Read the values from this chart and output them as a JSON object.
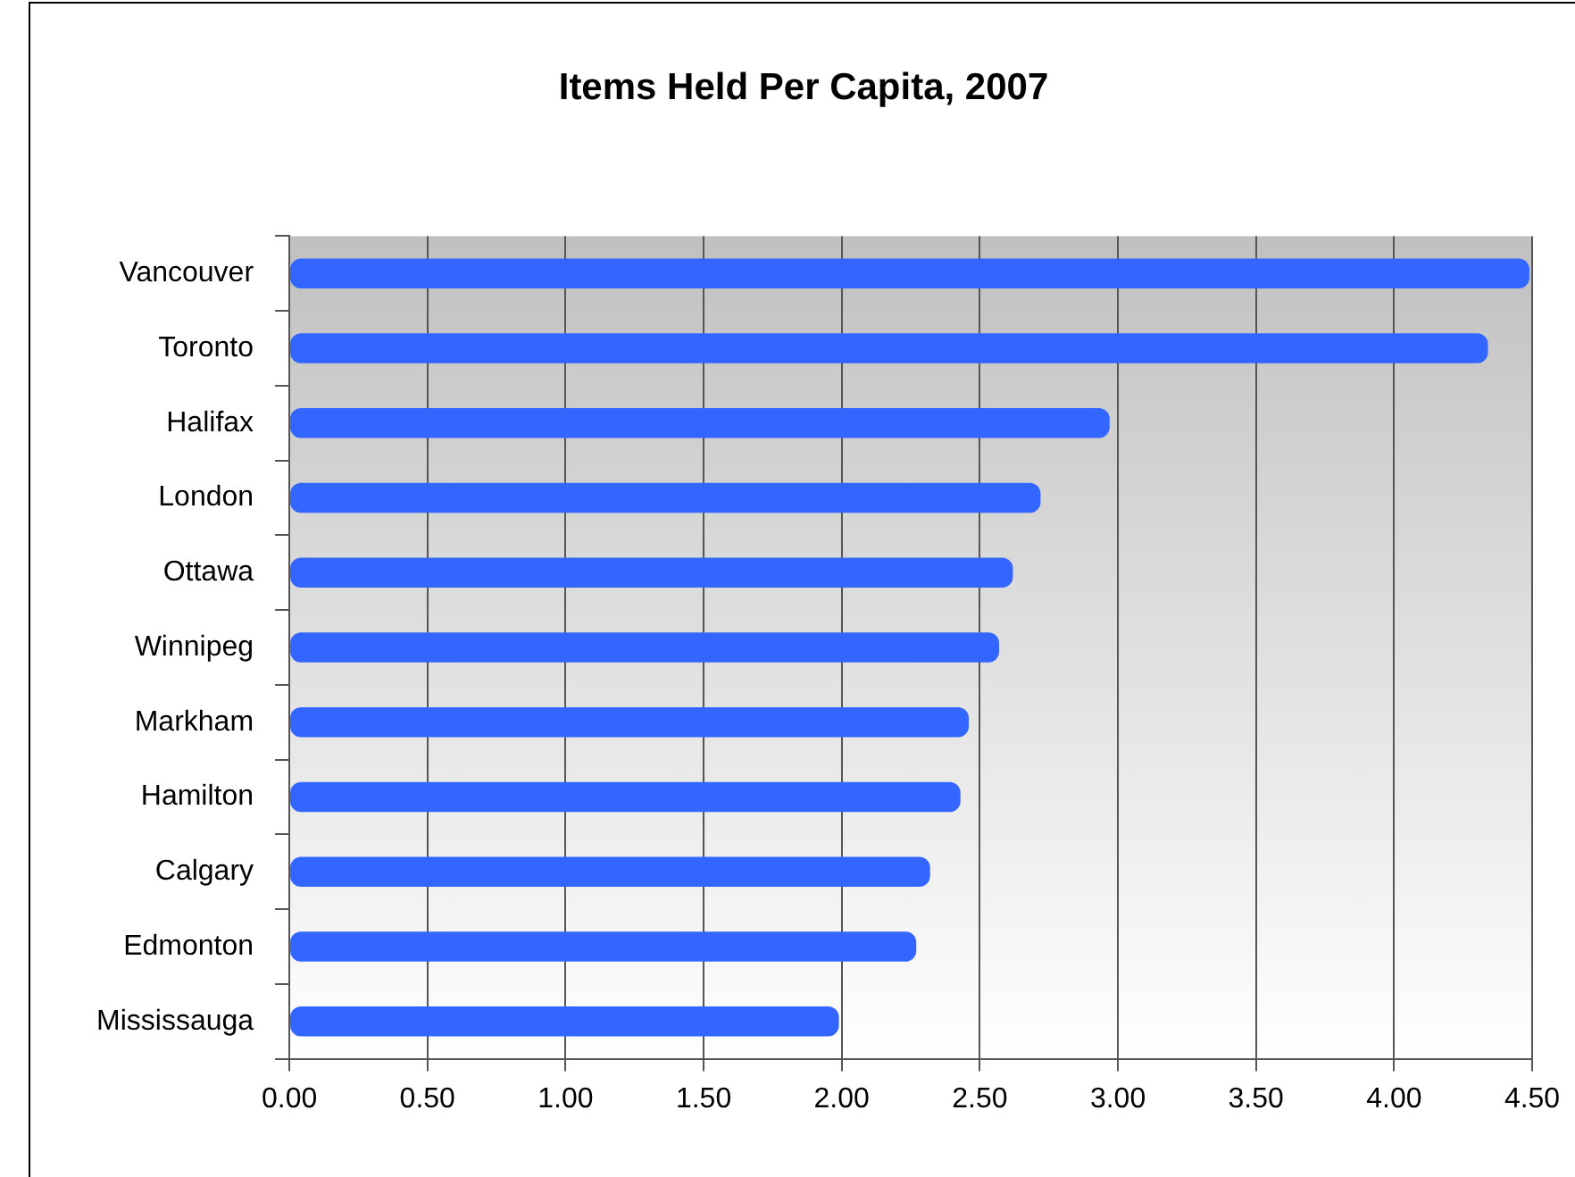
{
  "chart_data": {
    "type": "bar",
    "orientation": "horizontal",
    "title": "Items Held Per Capita, 2007",
    "categories": [
      "Vancouver",
      "Toronto",
      "Halifax",
      "London",
      "Ottawa",
      "Winnipeg",
      "Markham",
      "Hamilton",
      "Calgary",
      "Edmonton",
      "Mississauga"
    ],
    "values": [
      4.49,
      4.34,
      2.97,
      2.72,
      2.62,
      2.57,
      2.46,
      2.43,
      2.32,
      2.27,
      1.99
    ],
    "color": "#3366ff",
    "xlim": [
      0,
      4.5
    ],
    "xticks": [
      {
        "value": 0,
        "label": "0.00"
      },
      {
        "value": 0.5,
        "label": "0.50"
      },
      {
        "value": 1,
        "label": "1.00"
      },
      {
        "value": 1.5,
        "label": "1.50"
      },
      {
        "value": 2,
        "label": "2.00"
      },
      {
        "value": 2.5,
        "label": "2.50"
      },
      {
        "value": 3,
        "label": "3.00"
      },
      {
        "value": 3.5,
        "label": "3.50"
      },
      {
        "value": 4,
        "label": "4.00"
      },
      {
        "value": 4.5,
        "label": "4.50"
      }
    ],
    "grid": "x"
  }
}
